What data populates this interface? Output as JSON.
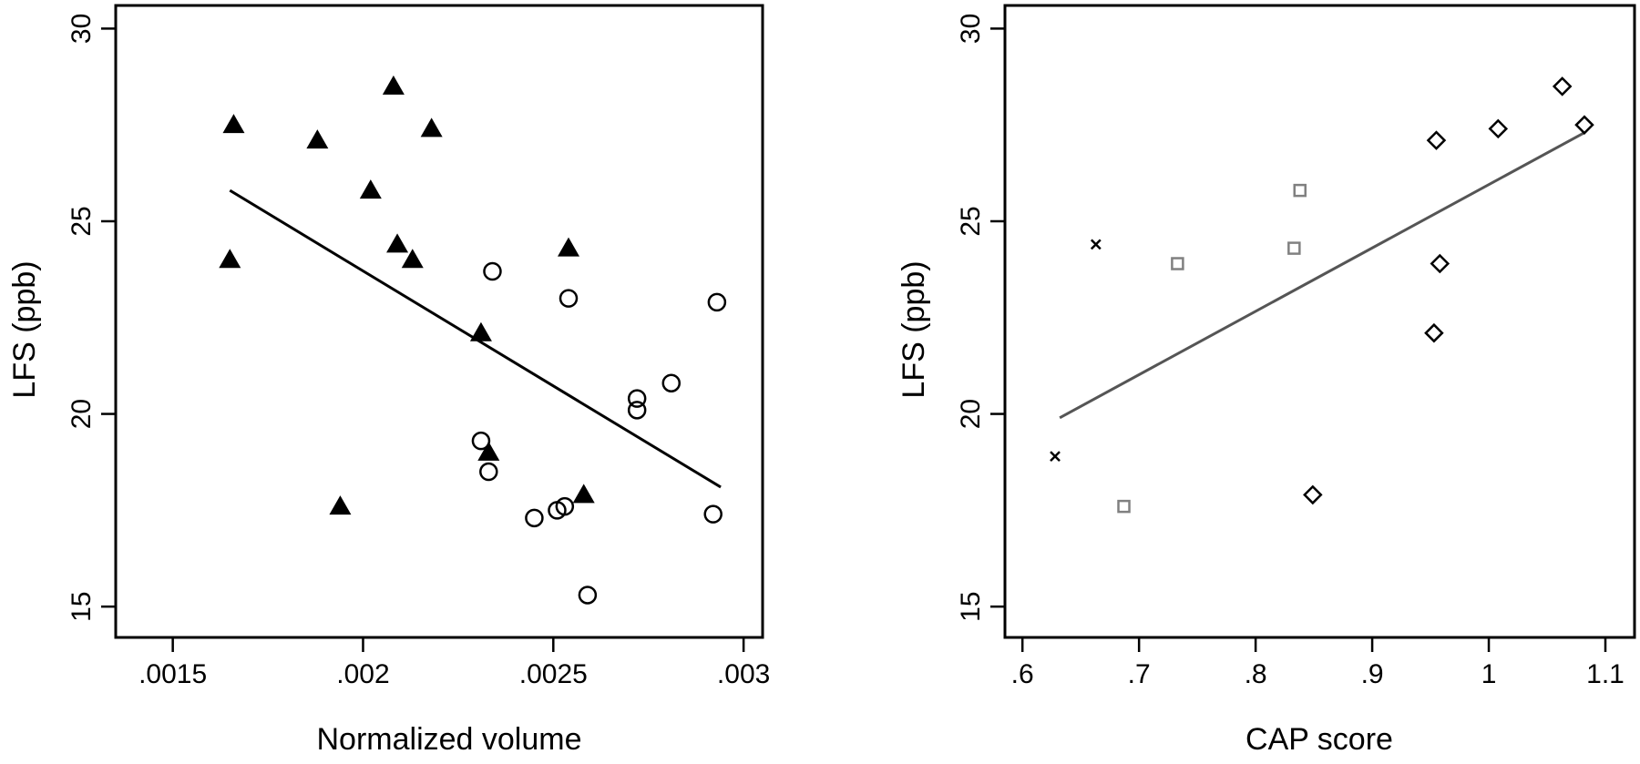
{
  "chart_data": [
    {
      "type": "scatter",
      "title": "",
      "xlabel": "Normalized volume",
      "ylabel": "LFS (ppb)",
      "xlim": [
        0.00135,
        0.00305
      ],
      "ylim": [
        14.2,
        30.6
      ],
      "xticks": [
        0.0015,
        0.002,
        0.0025,
        0.003
      ],
      "xtick_labels": [
        ".0015",
        ".002",
        ".0025",
        ".003"
      ],
      "yticks": [
        15,
        20,
        25,
        30
      ],
      "ytick_labels": [
        "15",
        "20",
        "25",
        "30"
      ],
      "grid": false,
      "series": [
        {
          "marker": "filled-triangle",
          "color": "#000000",
          "points": [
            [
              0.00166,
              27.5
            ],
            [
              0.00165,
              24.0
            ],
            [
              0.00188,
              27.1
            ],
            [
              0.00202,
              25.8
            ],
            [
              0.00208,
              28.5
            ],
            [
              0.00209,
              24.4
            ],
            [
              0.00213,
              24.0
            ],
            [
              0.00218,
              27.4
            ],
            [
              0.00194,
              17.6
            ],
            [
              0.00231,
              22.1
            ],
            [
              0.00233,
              19.0
            ],
            [
              0.00254,
              24.3
            ],
            [
              0.00258,
              17.9
            ]
          ]
        },
        {
          "marker": "hollow-circle",
          "color": "#000000",
          "points": [
            [
              0.00234,
              23.7
            ],
            [
              0.00254,
              23.0
            ],
            [
              0.00293,
              22.9
            ],
            [
              0.00281,
              20.8
            ],
            [
              0.00272,
              20.4
            ],
            [
              0.00272,
              20.1
            ],
            [
              0.00231,
              19.3
            ],
            [
              0.00233,
              18.5
            ],
            [
              0.00245,
              17.3
            ],
            [
              0.00251,
              17.5
            ],
            [
              0.00253,
              17.6
            ],
            [
              0.00292,
              17.4
            ],
            [
              0.00259,
              15.3
            ]
          ]
        }
      ],
      "fit_line": {
        "color": "#000000",
        "points": [
          [
            0.00165,
            25.8
          ],
          [
            0.00294,
            18.1
          ]
        ]
      }
    },
    {
      "type": "scatter",
      "title": "",
      "xlabel": "CAP score",
      "ylabel": "LFS (ppb)",
      "xlim": [
        0.585,
        1.125
      ],
      "ylim": [
        14.2,
        30.6
      ],
      "xticks": [
        0.6,
        0.7,
        0.8,
        0.9,
        1.0,
        1.1
      ],
      "xtick_labels": [
        ".6",
        ".7",
        ".8",
        ".9",
        "1",
        "1.1"
      ],
      "yticks": [
        15,
        20,
        25,
        30
      ],
      "ytick_labels": [
        "15",
        "20",
        "25",
        "30"
      ],
      "grid": false,
      "series": [
        {
          "marker": "x",
          "color": "#000000",
          "points": [
            [
              0.663,
              24.4
            ],
            [
              0.628,
              18.9
            ]
          ]
        },
        {
          "marker": "hollow-square",
          "color": "#808080",
          "points": [
            [
              0.733,
              23.9
            ],
            [
              0.838,
              25.8
            ],
            [
              0.833,
              24.3
            ],
            [
              0.687,
              17.6
            ]
          ]
        },
        {
          "marker": "hollow-diamond",
          "color": "#000000",
          "points": [
            [
              0.955,
              27.1
            ],
            [
              1.008,
              27.4
            ],
            [
              1.063,
              28.5
            ],
            [
              1.082,
              27.5
            ],
            [
              0.958,
              23.9
            ],
            [
              0.953,
              22.1
            ],
            [
              0.849,
              17.9
            ]
          ]
        }
      ],
      "fit_line": {
        "color": "#555555",
        "points": [
          [
            0.632,
            19.9
          ],
          [
            1.082,
            27.3
          ]
        ]
      }
    }
  ]
}
